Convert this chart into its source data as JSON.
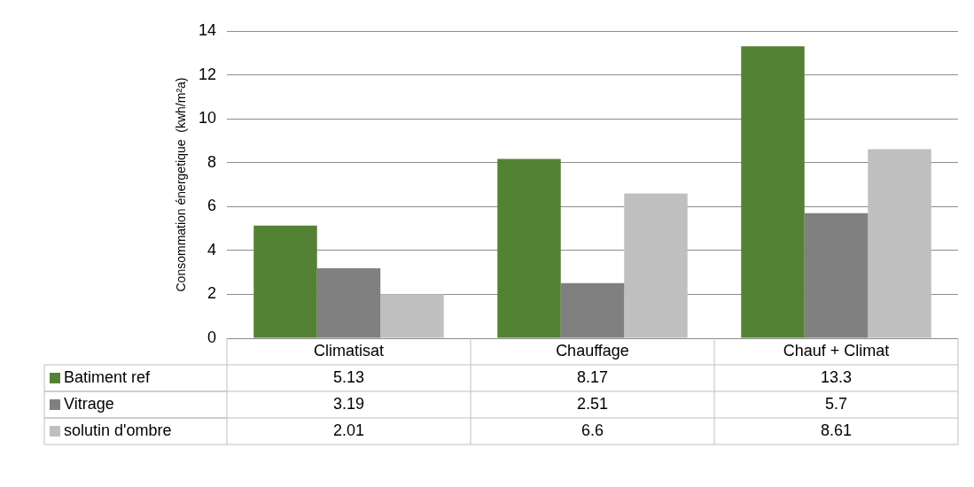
{
  "chart_data": {
    "type": "bar",
    "ylabel": "Consommation énergetique  (kwh/m²a)",
    "categories": [
      "Climatisat",
      "Chauffage",
      "Chauf + Climat"
    ],
    "series": [
      {
        "name": "Batiment ref",
        "color": "#548235",
        "values": [
          5.13,
          8.17,
          13.3
        ]
      },
      {
        "name": "Vitrage",
        "color": "#808080",
        "values": [
          3.19,
          2.51,
          5.7
        ]
      },
      {
        "name": "solutin d'ombre",
        "color": "#bfbfbf",
        "values": [
          2.01,
          6.6,
          8.61
        ]
      }
    ],
    "ylim": [
      0,
      14
    ],
    "yticks": [
      0,
      2,
      4,
      6,
      8,
      10,
      12,
      14
    ],
    "grid": "y",
    "legend": "bottom",
    "data_labels": true
  }
}
